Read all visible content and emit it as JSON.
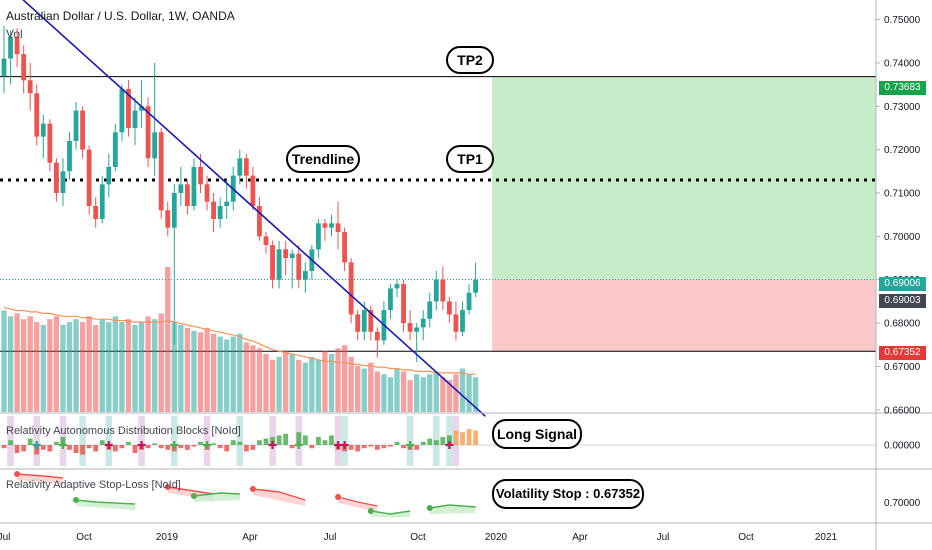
{
  "header": {
    "title": "Australian Dollar / U.S. Dollar, 1W, OANDA",
    "volume_label": "Vol"
  },
  "colors": {
    "up": "#26a69a",
    "down": "#ef5350",
    "trendline": "#1a1ab5",
    "target_zone": "#c8ebc9",
    "stop_zone": "#fbc9c9",
    "tp1_line": "#000000",
    "price_line": "#26a69a",
    "volume_ma": "#f7925b"
  },
  "chart_data": [
    {
      "type": "candlestick",
      "title": "Australian Dollar / U.S. Dollar, 1W, OANDA",
      "x_ticks": [
        "Jul",
        "Oct",
        "2019",
        "Apr",
        "Jul",
        "Oct",
        "2020",
        "Apr",
        "Jul",
        "Oct",
        "2021"
      ],
      "y_ticks": [
        "0.75000",
        "0.74000",
        "0.73000",
        "0.72000",
        "0.71000",
        "0.70000",
        "0.69000",
        "0.68000",
        "0.67000",
        "0.66000"
      ],
      "ylim": [
        0.6595,
        0.7545
      ],
      "series": [
        {
          "name": "AUDUSD",
          "ohlc": [
            [
              0.737,
              0.7485,
              0.733,
              0.741
            ],
            [
              0.741,
              0.7475,
              0.735,
              0.746
            ],
            [
              0.746,
              0.748,
              0.739,
              0.742
            ],
            [
              0.742,
              0.744,
              0.733,
              0.736
            ],
            [
              0.736,
              0.74,
              0.729,
              0.733
            ],
            [
              0.733,
              0.735,
              0.721,
              0.723
            ],
            [
              0.723,
              0.728,
              0.718,
              0.726
            ],
            [
              0.726,
              0.727,
              0.715,
              0.717
            ],
            [
              0.717,
              0.718,
              0.708,
              0.71
            ],
            [
              0.71,
              0.718,
              0.707,
              0.715
            ],
            [
              0.715,
              0.724,
              0.713,
              0.722
            ],
            [
              0.722,
              0.731,
              0.72,
              0.729
            ],
            [
              0.729,
              0.73,
              0.718,
              0.72
            ],
            [
              0.72,
              0.721,
              0.705,
              0.707
            ],
            [
              0.707,
              0.709,
              0.702,
              0.704
            ],
            [
              0.704,
              0.714,
              0.703,
              0.712
            ],
            [
              0.712,
              0.719,
              0.709,
              0.716
            ],
            [
              0.716,
              0.726,
              0.715,
              0.724
            ],
            [
              0.724,
              0.735,
              0.722,
              0.734
            ],
            [
              0.734,
              0.736,
              0.723,
              0.725
            ],
            [
              0.725,
              0.732,
              0.721,
              0.729
            ],
            [
              0.729,
              0.736,
              0.725,
              0.73
            ],
            [
              0.73,
              0.732,
              0.716,
              0.718
            ],
            [
              0.718,
              0.74,
              0.714,
              0.724
            ],
            [
              0.724,
              0.725,
              0.704,
              0.706
            ],
            [
              0.706,
              0.708,
              0.7,
              0.702
            ],
            [
              0.702,
              0.712,
              0.675,
              0.71
            ],
            [
              0.71,
              0.716,
              0.707,
              0.712
            ],
            [
              0.712,
              0.713,
              0.705,
              0.707
            ],
            [
              0.707,
              0.718,
              0.706,
              0.716
            ],
            [
              0.716,
              0.719,
              0.71,
              0.712
            ],
            [
              0.712,
              0.714,
              0.706,
              0.708
            ],
            [
              0.708,
              0.71,
              0.701,
              0.704
            ],
            [
              0.704,
              0.709,
              0.702,
              0.707
            ],
            [
              0.707,
              0.713,
              0.704,
              0.708
            ],
            [
              0.708,
              0.716,
              0.706,
              0.714
            ],
            [
              0.714,
              0.72,
              0.712,
              0.718
            ],
            [
              0.718,
              0.719,
              0.711,
              0.714
            ],
            [
              0.714,
              0.716,
              0.706,
              0.707
            ],
            [
              0.707,
              0.709,
              0.699,
              0.7
            ],
            [
              0.7,
              0.701,
              0.696,
              0.698
            ],
            [
              0.698,
              0.699,
              0.688,
              0.69
            ],
            [
              0.69,
              0.699,
              0.688,
              0.697
            ],
            [
              0.697,
              0.699,
              0.691,
              0.695
            ],
            [
              0.695,
              0.697,
              0.688,
              0.696
            ],
            [
              0.696,
              0.698,
              0.688,
              0.69
            ],
            [
              0.69,
              0.694,
              0.687,
              0.692
            ],
            [
              0.692,
              0.698,
              0.69,
              0.697
            ],
            [
              0.697,
              0.704,
              0.695,
              0.703
            ],
            [
              0.703,
              0.704,
              0.699,
              0.702
            ],
            [
              0.702,
              0.705,
              0.7,
              0.703
            ],
            [
              0.703,
              0.708,
              0.697,
              0.701
            ],
            [
              0.701,
              0.702,
              0.692,
              0.694
            ],
            [
              0.694,
              0.695,
              0.68,
              0.682
            ],
            [
              0.682,
              0.683,
              0.676,
              0.678
            ],
            [
              0.678,
              0.685,
              0.676,
              0.683
            ],
            [
              0.683,
              0.684,
              0.676,
              0.678
            ],
            [
              0.678,
              0.679,
              0.672,
              0.676
            ],
            [
              0.676,
              0.685,
              0.675,
              0.683
            ],
            [
              0.683,
              0.689,
              0.681,
              0.688
            ],
            [
              0.688,
              0.69,
              0.686,
              0.689
            ],
            [
              0.689,
              0.69,
              0.678,
              0.68
            ],
            [
              0.68,
              0.683,
              0.676,
              0.678
            ],
            [
              0.678,
              0.68,
              0.671,
              0.679
            ],
            [
              0.679,
              0.683,
              0.676,
              0.681
            ],
            [
              0.681,
              0.687,
              0.679,
              0.685
            ],
            [
              0.685,
              0.692,
              0.683,
              0.69
            ],
            [
              0.69,
              0.693,
              0.683,
              0.685
            ],
            [
              0.685,
              0.686,
              0.68,
              0.682
            ],
            [
              0.682,
              0.685,
              0.676,
              0.678
            ],
            [
              0.678,
              0.685,
              0.677,
              0.683
            ],
            [
              0.683,
              0.689,
              0.682,
              0.687
            ],
            [
              0.687,
              0.694,
              0.686,
              0.69
            ]
          ]
        },
        {
          "name": "Vol",
          "volume": [
            70,
            66,
            68,
            64,
            66,
            62,
            60,
            64,
            66,
            60,
            62,
            64,
            62,
            66,
            60,
            64,
            62,
            66,
            62,
            64,
            60,
            62,
            66,
            64,
            68,
            100,
            62,
            60,
            58,
            56,
            55,
            58,
            54,
            52,
            50,
            52,
            54,
            48,
            46,
            44,
            40,
            36,
            38,
            42,
            40,
            36,
            34,
            38,
            36,
            42,
            40,
            44,
            46,
            38,
            32,
            30,
            34,
            28,
            26,
            24,
            30,
            28,
            22,
            26,
            24,
            26,
            28,
            24,
            22,
            26,
            30,
            26,
            24
          ],
          "volume_ma": [
            72,
            71,
            70,
            70,
            69,
            69,
            68,
            68,
            67,
            66,
            66,
            66,
            65,
            65,
            64,
            64,
            64,
            63,
            63,
            63,
            62,
            62,
            62,
            62,
            62,
            63,
            62,
            61,
            60,
            59,
            58,
            57,
            56,
            55,
            54,
            53,
            52,
            50,
            49,
            47,
            45,
            43,
            42,
            41,
            40,
            39,
            38,
            37,
            36,
            35,
            35,
            34,
            34,
            33,
            33,
            32,
            32,
            31,
            31,
            30,
            30,
            29,
            29,
            28,
            28,
            28,
            27,
            27,
            27,
            27,
            27,
            26,
            26
          ]
        }
      ],
      "levels": {
        "tp2": 0.73683,
        "tp1": 0.713,
        "entry": 0.69006,
        "last": 0.69003,
        "stop": 0.67352
      },
      "trendline": {
        "from": {
          "bar": 0,
          "price": 0.7585
        },
        "to": {
          "bar": 73.5,
          "price": 0.6585
        }
      },
      "legend": "none",
      "grid": false
    },
    {
      "type": "bar",
      "title": "Relativity Autonomous Distribution Blocks [NoId]",
      "y_ticks": [
        "0.00000"
      ],
      "values": [
        -2,
        3,
        -5,
        -4,
        4,
        -6,
        -3,
        -4,
        2,
        5,
        -3,
        -5,
        -6,
        -2,
        -4,
        3,
        -3,
        -4,
        -2,
        2,
        -5,
        -3,
        -2,
        1,
        -2,
        -3,
        -4,
        -2,
        -3,
        -1,
        2,
        -3,
        1,
        -2,
        -4,
        3,
        2,
        -4,
        -3,
        3,
        4,
        5,
        6,
        7,
        -2,
        8,
        6,
        -2,
        5,
        3,
        6,
        -3,
        -4,
        -3,
        -4,
        -2,
        -1,
        -3,
        -2,
        -1,
        2,
        -2,
        -3,
        -3,
        2,
        4,
        3,
        5,
        6,
        9,
        8,
        10,
        9
      ]
    },
    {
      "type": "line",
      "title": "Relativity Adaptive Stop-Loss [NoId]",
      "y_ticks": [
        "0.70000"
      ]
    }
  ],
  "callouts": {
    "tp2": "TP2",
    "tp1": "TP1",
    "trendline": "Trendline",
    "long_signal": "Long Signal",
    "volatility_stop": "Volatility Stop : 0.67352"
  },
  "price_tags": {
    "tp2": "0.73683",
    "entry": "0.69006",
    "last": "0.69003",
    "stop": "0.67352"
  }
}
